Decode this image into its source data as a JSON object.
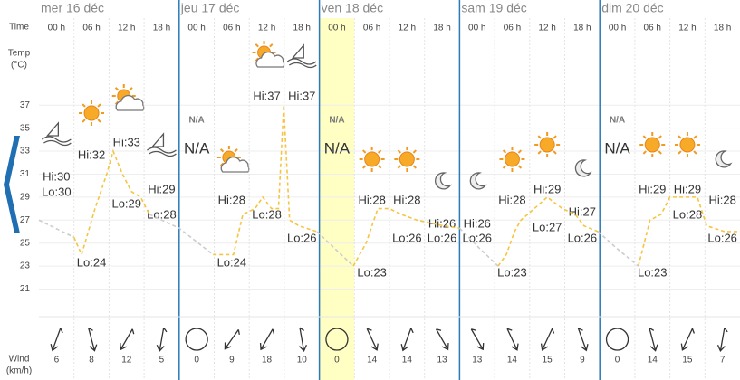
{
  "axis": {
    "time_label": "Time",
    "temp_label": "Temp",
    "temp_unit": "(°C)",
    "wind_label": "Wind",
    "wind_unit": "(km/h)"
  },
  "days": [
    {
      "label": "mer 16 déc",
      "slots": [
        {
          "time": "00 h",
          "hi": "Hi:30",
          "lo": "Lo:30",
          "wind": 6
        },
        {
          "time": "06 h",
          "hi": "Hi:32",
          "lo": "Lo:24",
          "wind": 8
        },
        {
          "time": "12 h",
          "hi": "Hi:33",
          "lo": "Lo:29",
          "wind": 12
        },
        {
          "time": "18 h",
          "hi": "Hi:29",
          "lo": "Lo:28",
          "wind": 5
        }
      ]
    },
    {
      "label": "jeu 17 déc",
      "slots": [
        {
          "time": "00 h",
          "hi": "N/A",
          "wind": 0
        },
        {
          "time": "06 h",
          "hi": "Hi:28",
          "lo": "Lo:24",
          "wind": 9
        },
        {
          "time": "12 h",
          "hi": "Hi:37",
          "lo": "Lo:28",
          "wind": 18
        },
        {
          "time": "18 h",
          "hi": "Hi:37",
          "lo": "Lo:26",
          "wind": 10
        }
      ]
    },
    {
      "label": "ven 18 déc",
      "slots": [
        {
          "time": "00 h",
          "hi": "N/A",
          "wind": 0
        },
        {
          "time": "06 h",
          "hi": "Hi:28",
          "lo": "Lo:23",
          "wind": 14
        },
        {
          "time": "12 h",
          "hi": "Hi:28",
          "lo": "Lo:26",
          "wind": 14
        },
        {
          "time": "18 h",
          "hi": "Hi:26",
          "lo": "Lo:26",
          "wind": 13
        }
      ]
    },
    {
      "label": "sam 19 déc",
      "slots": [
        {
          "time": "00 h",
          "hi": "Hi:26",
          "lo": "Lo:26",
          "wind": 13
        },
        {
          "time": "06 h",
          "hi": "Hi:28",
          "lo": "Lo:23",
          "wind": 14
        },
        {
          "time": "12 h",
          "hi": "Hi:29",
          "lo": "Lo:27",
          "wind": 15
        },
        {
          "time": "18 h",
          "hi": "Hi:27",
          "lo": "Lo:26",
          "wind": 9
        }
      ]
    },
    {
      "label": "dim 20 déc",
      "slots": [
        {
          "time": "00 h",
          "hi": "N/A",
          "wind": 0
        },
        {
          "time": "06 h",
          "hi": "Hi:29",
          "lo": "Lo:23",
          "wind": 14
        },
        {
          "time": "12 h",
          "hi": "Hi:29",
          "lo": "Lo:28",
          "wind": 15
        },
        {
          "time": "18 h",
          "hi": "Hi:28",
          "lo": "Lo:26",
          "wind": 7
        }
      ]
    }
  ],
  "chart_data": {
    "type": "line",
    "x": [
      0,
      6,
      7.3,
      9.6,
      11.6,
      12.7,
      14.3,
      15.8,
      17.4,
      18.9,
      24,
      29.8,
      33.3,
      34.9,
      37,
      38.3,
      39.8,
      41,
      41.9,
      42.9,
      44.5,
      47.6,
      50.7,
      53.8,
      56,
      58,
      60,
      62,
      64.7,
      69.3,
      72,
      75.3,
      78.6,
      80,
      81.4,
      82.5,
      84.8,
      87,
      89.6,
      91.8,
      93.3,
      95.7,
      99,
      102.6,
      104.6,
      106.5,
      108,
      112.7,
      114.3,
      117.4,
      120
    ],
    "xlim": [
      0,
      120
    ],
    "ylim": [
      18.6,
      43
    ],
    "yticks": [
      21,
      23,
      25,
      27,
      29,
      31,
      33,
      35,
      37
    ],
    "grid": true,
    "series": [
      {
        "color": "#cccccc",
        "values": [
          27,
          25.5,
          null,
          null,
          null,
          null,
          null,
          null,
          null,
          27.5,
          26.3,
          24,
          null,
          null,
          null,
          null,
          null,
          null,
          null,
          null,
          null,
          26,
          24.5,
          23,
          null,
          null,
          null,
          null,
          null,
          null,
          26.3,
          24.6,
          23,
          null,
          null,
          null,
          null,
          null,
          null,
          null,
          null,
          26,
          24.5,
          23,
          null,
          null,
          null,
          null,
          null,
          null,
          null
        ]
      },
      {
        "color": "#f5c542",
        "values": [
          null,
          25.5,
          24,
          28,
          31,
          33,
          31,
          29.5,
          29,
          27.5,
          null,
          24,
          24,
          27.5,
          28,
          29,
          28,
          28,
          37,
          27,
          26.5,
          26,
          null,
          23,
          25,
          28,
          28,
          27.5,
          27,
          26.5,
          26.3,
          null,
          23,
          24,
          26,
          27,
          28,
          29,
          28,
          27.5,
          26.5,
          26,
          null,
          23,
          27,
          27.5,
          29,
          29,
          26.5,
          26,
          26
        ]
      }
    ]
  }
}
